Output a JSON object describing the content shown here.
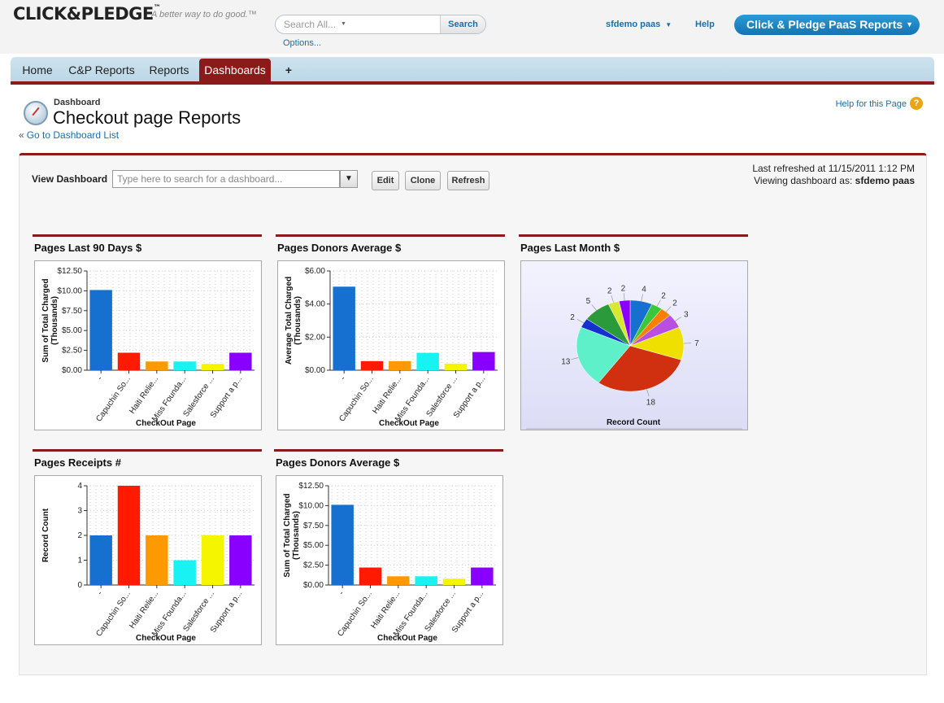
{
  "header": {
    "logo": "CLICK&PLEDGE",
    "logo_tm": "™",
    "tagline": "A better way to do good.™",
    "search_placeholder": "Search All...",
    "search_button": "Search",
    "options_link": "Options...",
    "user_name": "sfdemo paas",
    "help_link": "Help",
    "app_name": "Click & Pledge PaaS Reports"
  },
  "tabs": [
    {
      "label": "Home"
    },
    {
      "label": "C&P Reports"
    },
    {
      "label": "Reports"
    },
    {
      "label": "Dashboards"
    },
    {
      "label": "+"
    }
  ],
  "page": {
    "crumb": "Dashboard",
    "title": "Checkout page Reports",
    "back_link": "Go to Dashboard List",
    "help_page": "Help for this Page",
    "help_icon": "?",
    "view_label": "View Dashboard",
    "dash_search_placeholder": "Type here to search for a dashboard...",
    "edit_label": "Edit",
    "clone_label": "Clone",
    "refresh_label": "Refresh",
    "last_refreshed": "Last refreshed at 11/15/2011 1:12 PM",
    "viewing_as_label": "Viewing dashboard as:",
    "viewing_as_user": "sfdemo paas"
  },
  "colors": {
    "series": [
      "#1570d0",
      "#ff1a00",
      "#ff9900",
      "#19f2f2",
      "#f5f500",
      "#8a00ff"
    ],
    "tab_active": "#8b1a1a",
    "link": "#1b6ea8"
  },
  "chart_data": [
    {
      "type": "bar",
      "title": "Pages Last 90 Days $",
      "xlabel": "CheckOut Page",
      "ylabel": "Sum of Total Charged (Thousands)",
      "categories": [
        "-",
        "Capuchin So...",
        "Haiti Relie...",
        "Miss Founda...",
        "Salesforce ...",
        "Support a p..."
      ],
      "values": [
        10.1,
        2.2,
        1.1,
        1.1,
        0.8,
        2.2
      ],
      "yticks": [
        "$0.00",
        "$2.50",
        "$5.00",
        "$7.50",
        "$10.00",
        "$12.50"
      ],
      "ylim": [
        0,
        12.5
      ]
    },
    {
      "type": "bar",
      "title": "Pages Donors Average $",
      "xlabel": "CheckOut Page",
      "ylabel": "Average Total Charged (Thousands)",
      "categories": [
        "-",
        "Capuchin So...",
        "Haiti Relie...",
        "Miss Founda...",
        "Salesforce ...",
        "Support a p..."
      ],
      "values": [
        5.05,
        0.55,
        0.55,
        1.05,
        0.4,
        1.1
      ],
      "yticks": [
        "$0.00",
        "$2.00",
        "$4.00",
        "$6.00"
      ],
      "ylim": [
        0,
        6
      ]
    },
    {
      "type": "pie",
      "title": "Pages Last Month $",
      "xlabel": "Record Count",
      "values": [
        4,
        2,
        2,
        3,
        7,
        18,
        13,
        2,
        5,
        2,
        2
      ],
      "slice_colors": [
        "#1570d0",
        "#3cc63c",
        "#ff7f00",
        "#b84fe0",
        "#f0e000",
        "#d03010",
        "#5ef0c8",
        "#1530d0",
        "#2a9a3a",
        "#d8e830",
        "#8a00ff"
      ]
    },
    {
      "type": "bar",
      "title": "Pages Receipts #",
      "xlabel": "CheckOut Page",
      "ylabel": "Record Count",
      "categories": [
        "-",
        "Capuchin So...",
        "Haiti Relie...",
        "Miss Founda...",
        "Salesforce ...",
        "Support a p..."
      ],
      "values": [
        2,
        4,
        2,
        1,
        2,
        2
      ],
      "yticks": [
        "0",
        "1",
        "2",
        "3",
        "4"
      ],
      "ylim": [
        0,
        4
      ]
    },
    {
      "type": "bar",
      "title": "Pages Donors Average $",
      "xlabel": "CheckOut Page",
      "ylabel": "Sum of Total Charged (Thousands)",
      "categories": [
        "-",
        "Capuchin So...",
        "Haiti Relie...",
        "Miss Founda...",
        "Salesforce ...",
        "Support a p..."
      ],
      "values": [
        10.1,
        2.2,
        1.1,
        1.1,
        0.8,
        2.2
      ],
      "yticks": [
        "$0.00",
        "$2.50",
        "$5.00",
        "$7.50",
        "$10.00",
        "$12.50"
      ],
      "ylim": [
        0,
        12.5
      ]
    }
  ]
}
